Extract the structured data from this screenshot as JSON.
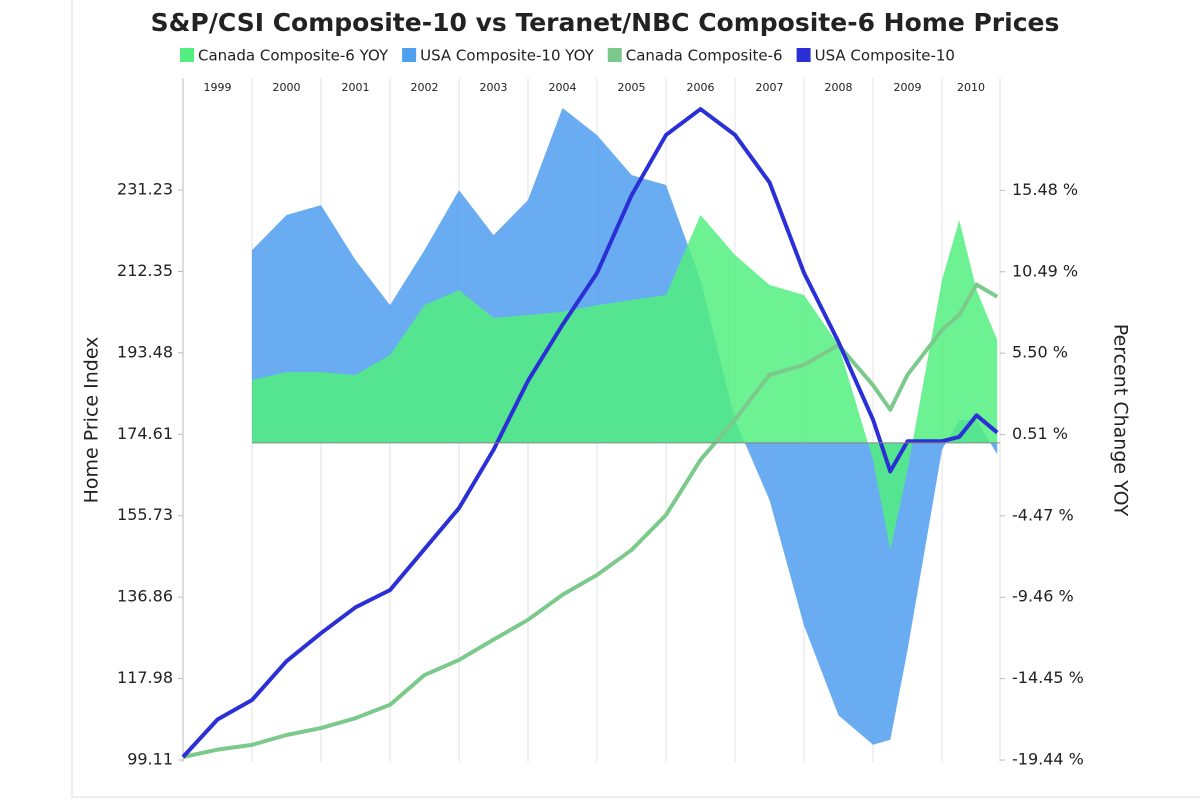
{
  "chart_data": {
    "type": "area_line",
    "title": "S&P/CSI Composite-10 vs Teranet/NBC Composite-6 Home Prices",
    "ylabel": "Home Price Index",
    "y2label": "Percent Change YOY",
    "x": [
      1999,
      1999.5,
      2000,
      2000.5,
      2001,
      2001.5,
      2002,
      2002.5,
      2003,
      2003.5,
      2004,
      2004.5,
      2005,
      2005.5,
      2006,
      2006.5,
      2007,
      2007.5,
      2008,
      2008.5,
      2009,
      2009.25,
      2009.5,
      2010,
      2010.25,
      2010.5,
      2010.8
    ],
    "xlim": [
      1999,
      2010.84
    ],
    "xticks": [
      1999,
      2000,
      2001,
      2002,
      2003,
      2004,
      2005,
      2006,
      2007,
      2008,
      2009,
      2010
    ],
    "ylim": [
      98.64,
      257.2
    ],
    "yticks": [
      99.11,
      117.98,
      136.86,
      155.73,
      174.61,
      193.48,
      212.35,
      231.23
    ],
    "y2lim": [
      -19.56,
      22.37
    ],
    "y2ticks": [
      {
        "value": -19.44,
        "label": "-19.44 %"
      },
      {
        "value": -14.45,
        "label": "-14.45 %"
      },
      {
        "value": -9.46,
        "label": "-9.46 %"
      },
      {
        "value": -4.47,
        "label": "-4.47 %"
      },
      {
        "value": 0.51,
        "label": "0.51 %"
      },
      {
        "value": 5.5,
        "label": "5.50 %"
      },
      {
        "value": 10.49,
        "label": "10.49 %"
      },
      {
        "value": 15.48,
        "label": "15.48 %"
      }
    ],
    "grid": true,
    "series": [
      {
        "name": "Canada Composite-6 YOY",
        "color": "#52ee80",
        "kind": "area",
        "axis": "y2",
        "values": [
          null,
          null,
          3.85,
          4.34,
          4.34,
          4.16,
          5.39,
          8.45,
          9.37,
          7.66,
          7.84,
          8.03,
          8.45,
          8.76,
          9.07,
          13.97,
          11.52,
          9.68,
          9.07,
          6.0,
          -1.05,
          -6.57,
          -1.66,
          9.98,
          13.66,
          9.37,
          6.3
        ]
      },
      {
        "name": "USA Composite-10 YOY",
        "color": "#4f9ef0",
        "kind": "area",
        "axis": "y2",
        "values": [
          null,
          null,
          11.82,
          13.97,
          14.58,
          11.21,
          8.45,
          11.82,
          15.5,
          12.74,
          14.89,
          20.53,
          18.87,
          16.42,
          15.81,
          9.98,
          1.4,
          -3.5,
          -11.2,
          -16.7,
          -18.5,
          -18.2,
          -12.7,
          -0.4,
          1.4,
          1.4,
          -0.7
        ]
      },
      {
        "name": "Canada Composite-6",
        "color": "#7cc98c",
        "kind": "line",
        "values": [
          99.8,
          101.5,
          102.6,
          104.9,
          106.5,
          108.8,
          111.9,
          118.8,
          122.3,
          127,
          131.6,
          137.4,
          142,
          147.8,
          155.9,
          168.7,
          178,
          188.4,
          190.7,
          195.3,
          186,
          180.3,
          188.4,
          198.8,
          202.3,
          209.3,
          206.5
        ]
      },
      {
        "name": "USA Composite-10",
        "color": "#2a2fd6",
        "kind": "line",
        "values": [
          99.8,
          108.5,
          113,
          122,
          128.5,
          134.5,
          138.5,
          148,
          157.5,
          171,
          187,
          200,
          212,
          230,
          244,
          250,
          244,
          233,
          212,
          196,
          178,
          166,
          173,
          173,
          174,
          179,
          175
        ]
      }
    ]
  }
}
